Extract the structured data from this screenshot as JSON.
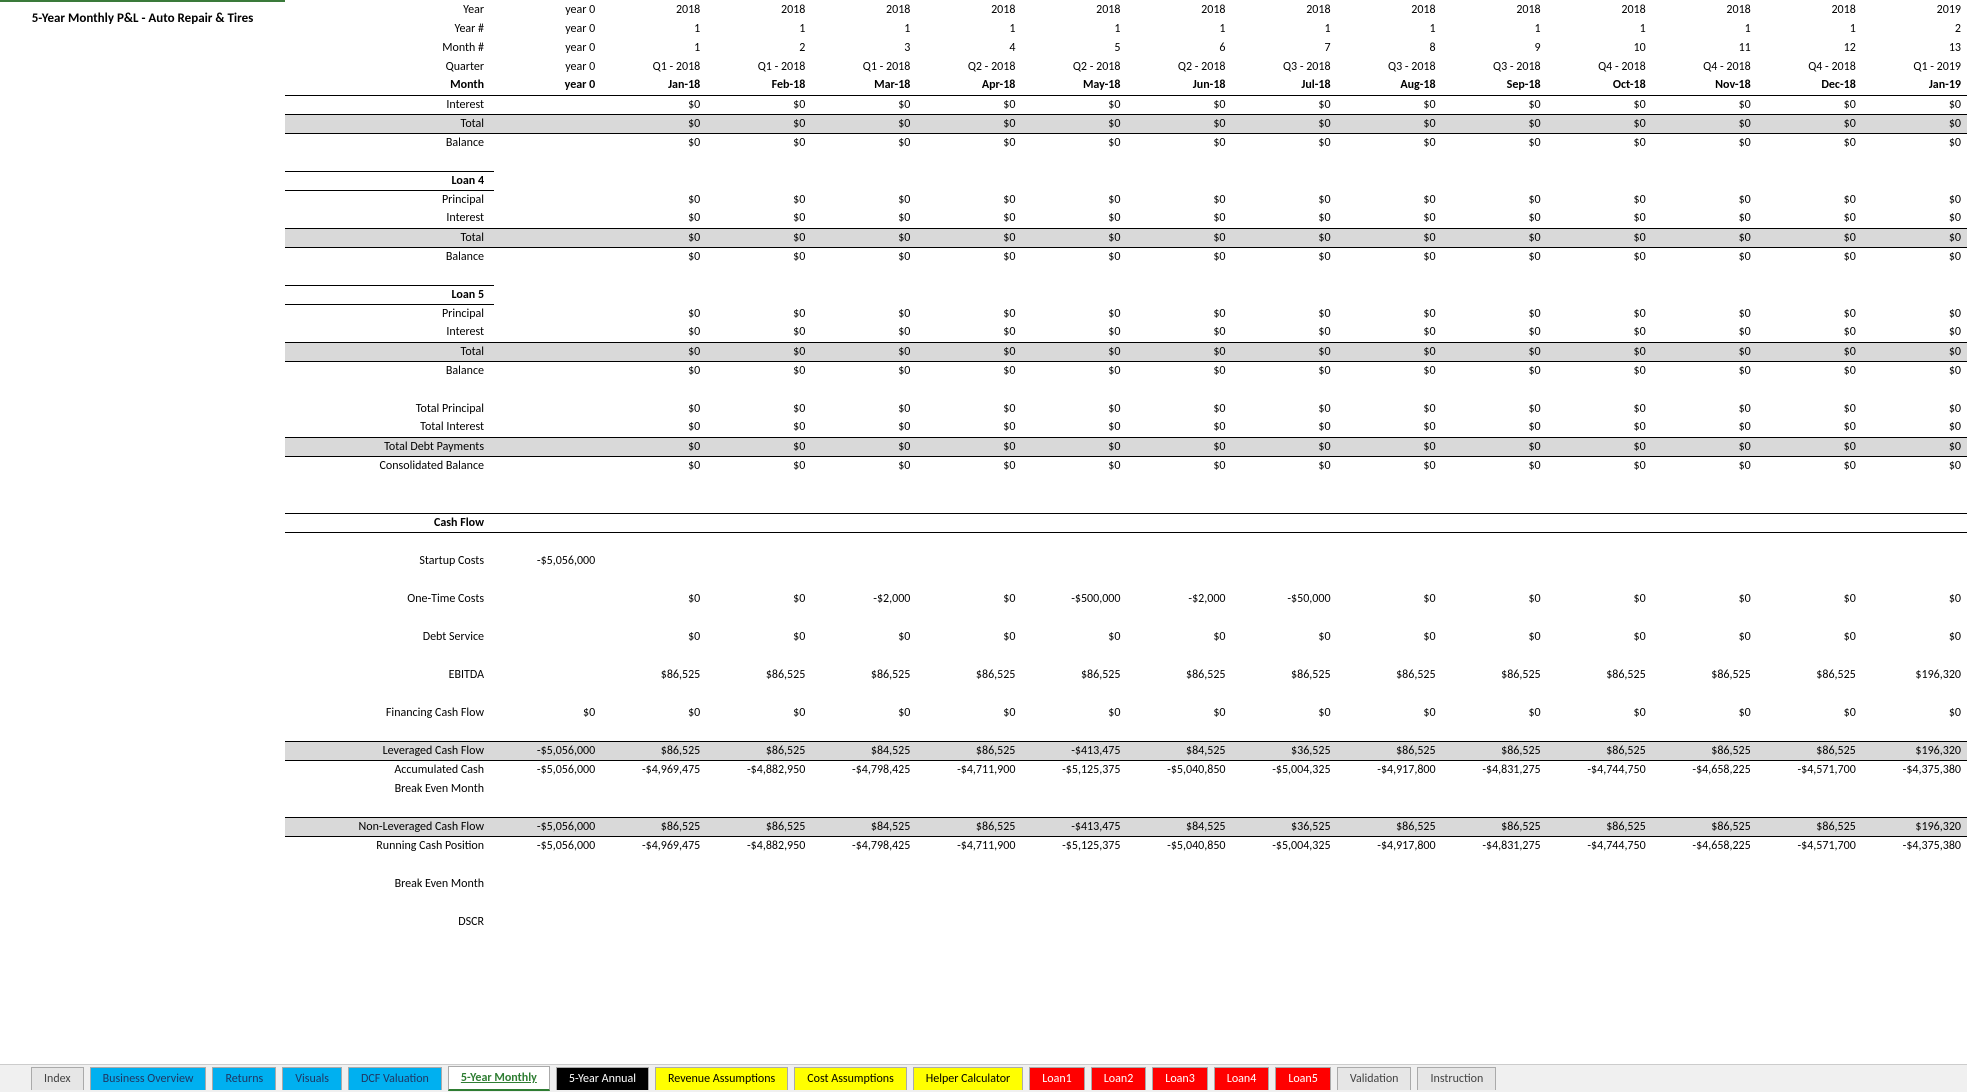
{
  "title": "5-Year Monthly P&L - Auto Repair & Tires",
  "headers": {
    "labels": [
      "Year",
      "Year #",
      "Month #",
      "Quarter",
      "Month"
    ],
    "year0": [
      "year 0",
      "year 0",
      "year 0",
      "year 0",
      "year 0"
    ],
    "cols": [
      [
        "2018",
        "1",
        "1",
        "Q1 - 2018",
        "Jan-18"
      ],
      [
        "2018",
        "1",
        "2",
        "Q1 - 2018",
        "Feb-18"
      ],
      [
        "2018",
        "1",
        "3",
        "Q1 - 2018",
        "Mar-18"
      ],
      [
        "2018",
        "1",
        "4",
        "Q2 - 2018",
        "Apr-18"
      ],
      [
        "2018",
        "1",
        "5",
        "Q2 - 2018",
        "May-18"
      ],
      [
        "2018",
        "1",
        "6",
        "Q2 - 2018",
        "Jun-18"
      ],
      [
        "2018",
        "1",
        "7",
        "Q3 - 2018",
        "Jul-18"
      ],
      [
        "2018",
        "1",
        "8",
        "Q3 - 2018",
        "Aug-18"
      ],
      [
        "2018",
        "1",
        "9",
        "Q3 - 2018",
        "Sep-18"
      ],
      [
        "2018",
        "1",
        "10",
        "Q4 - 2018",
        "Oct-18"
      ],
      [
        "2018",
        "1",
        "11",
        "Q4 - 2018",
        "Nov-18"
      ],
      [
        "2018",
        "1",
        "12",
        "Q4 - 2018",
        "Dec-18"
      ],
      [
        "2019",
        "2",
        "13",
        "Q1 - 2019",
        "Jan-19"
      ]
    ]
  },
  "zeroRow": [
    "$0",
    "$0",
    "$0",
    "$0",
    "$0",
    "$0",
    "$0",
    "$0",
    "$0",
    "$0",
    "$0",
    "$0",
    "$0"
  ],
  "sections": {
    "interest": "Interest",
    "total": "Total",
    "balance": "Balance",
    "loan4": "Loan 4",
    "loan5": "Loan 5",
    "principal": "Principal",
    "totalPrincipal": "Total Principal",
    "totalInterest": "Total Interest",
    "totalDebtPayments": "Total Debt Payments",
    "consolidatedBalance": "Consolidated Balance",
    "cashFlow": "Cash Flow",
    "startupCosts": "Startup Costs",
    "oneTimeCosts": "One-Time Costs",
    "debtService": "Debt Service",
    "ebitda": "EBITDA",
    "financingCashFlow": "Financing Cash Flow",
    "leveragedCashFlow": "Leveraged Cash Flow",
    "accumulatedCash": "Accumulated Cash",
    "breakEvenMonth": "Break Even Month",
    "nonLeveragedCashFlow": "Non-Leveraged Cash Flow",
    "runningCashPosition": "Running Cash Position",
    "dscr": "DSCR"
  },
  "startupCostsY0": "-$5,056,000",
  "oneTimeCosts": [
    "$0",
    "$0",
    "-$2,000",
    "$0",
    "-$500,000",
    "-$2,000",
    "-$50,000",
    "$0",
    "$0",
    "$0",
    "$0",
    "$0",
    "$0"
  ],
  "ebitda": [
    "$86,525",
    "$86,525",
    "$86,525",
    "$86,525",
    "$86,525",
    "$86,525",
    "$86,525",
    "$86,525",
    "$86,525",
    "$86,525",
    "$86,525",
    "$86,525",
    "$196,320"
  ],
  "financingY0": "$0",
  "leveragedY0": "-$5,056,000",
  "leveraged": [
    "$86,525",
    "$86,525",
    "$84,525",
    "$86,525",
    "-$413,475",
    "$84,525",
    "$36,525",
    "$86,525",
    "$86,525",
    "$86,525",
    "$86,525",
    "$86,525",
    "$196,320"
  ],
  "accumulatedY0": "-$5,056,000",
  "accumulated": [
    "-$4,969,475",
    "-$4,882,950",
    "-$4,798,425",
    "-$4,711,900",
    "-$5,125,375",
    "-$5,040,850",
    "-$5,004,325",
    "-$4,917,800",
    "-$4,831,275",
    "-$4,744,750",
    "-$4,658,225",
    "-$4,571,700",
    "-$4,375,380"
  ],
  "nonLevY0": "-$5,056,000",
  "nonLev": [
    "$86,525",
    "$86,525",
    "$84,525",
    "$86,525",
    "-$413,475",
    "$84,525",
    "$36,525",
    "$86,525",
    "$86,525",
    "$86,525",
    "$86,525",
    "$86,525",
    "$196,320"
  ],
  "runningY0": "-$5,056,000",
  "running": [
    "-$4,969,475",
    "-$4,882,950",
    "-$4,798,425",
    "-$4,711,900",
    "-$5,125,375",
    "-$5,040,850",
    "-$5,004,325",
    "-$4,917,800",
    "-$4,831,275",
    "-$4,744,750",
    "-$4,658,225",
    "-$4,571,700",
    "-$4,375,380"
  ],
  "tabs": [
    {
      "label": "Index",
      "bg": "#e6e6e6",
      "color": "#444"
    },
    {
      "label": "Business Overview",
      "bg": "#00b0f0",
      "color": "#1f3864"
    },
    {
      "label": "Returns",
      "bg": "#00b0f0",
      "color": "#1f3864"
    },
    {
      "label": "Visuals",
      "bg": "#00b0f0",
      "color": "#1f3864"
    },
    {
      "label": "DCF Valuation",
      "bg": "#00b0f0",
      "color": "#1f3864"
    },
    {
      "label": "5-Year Monthly",
      "bg": "#ffffff",
      "color": "#2e7d32",
      "bold": true,
      "active": true
    },
    {
      "label": "5-Year Annual",
      "bg": "#000000",
      "color": "#ffffff"
    },
    {
      "label": "Revenue Assumptions",
      "bg": "#ffff00",
      "color": "#000"
    },
    {
      "label": "Cost Assumptions",
      "bg": "#ffff00",
      "color": "#000"
    },
    {
      "label": "Helper Calculator",
      "bg": "#ffff00",
      "color": "#000"
    },
    {
      "label": "Loan1",
      "bg": "#ff0000",
      "color": "#ffffff"
    },
    {
      "label": "Loan2",
      "bg": "#ff0000",
      "color": "#ffffff"
    },
    {
      "label": "Loan3",
      "bg": "#ff0000",
      "color": "#ffffff"
    },
    {
      "label": "Loan4",
      "bg": "#ff0000",
      "color": "#ffffff"
    },
    {
      "label": "Loan5",
      "bg": "#ff0000",
      "color": "#ffffff"
    },
    {
      "label": "Validation",
      "bg": "#e6e6e6",
      "color": "#444"
    },
    {
      "label": "Instruction",
      "bg": "#e6e6e6",
      "color": "#444"
    }
  ]
}
